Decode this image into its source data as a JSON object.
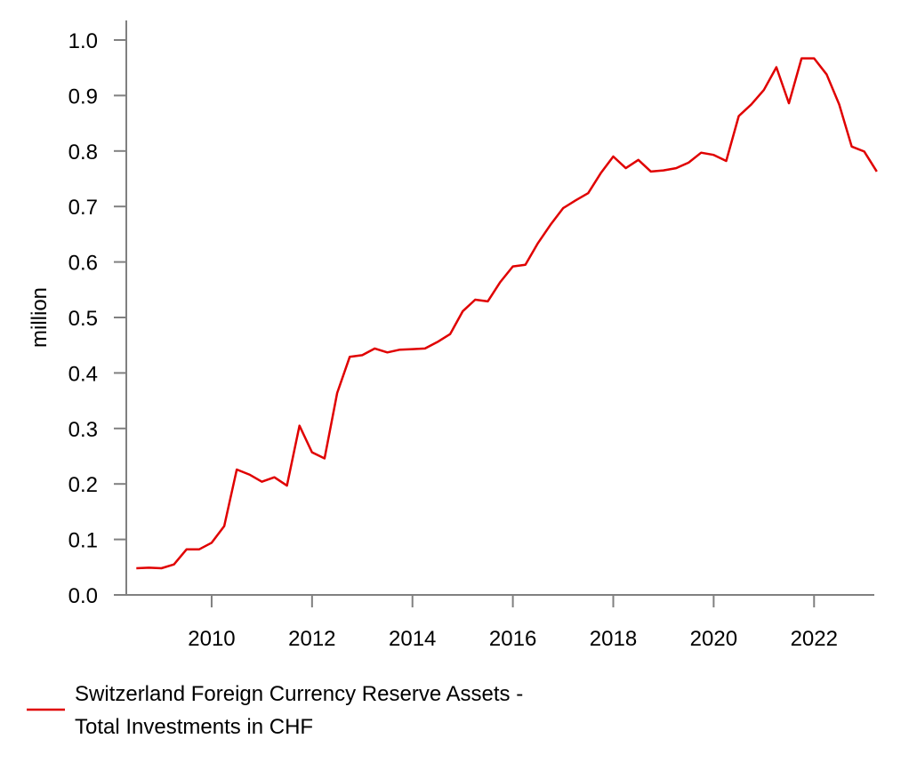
{
  "chart_data": {
    "type": "line",
    "ylabel": "million",
    "xlabel": "",
    "ylim": [
      0.0,
      1.0
    ],
    "xlim": [
      2008.3,
      2023.2
    ],
    "y_ticks": [
      0.0,
      0.1,
      0.2,
      0.3,
      0.4,
      0.5,
      0.6,
      0.7,
      0.8,
      0.9,
      1.0
    ],
    "y_tick_labels": [
      "0.0",
      "0.1",
      "0.2",
      "0.3",
      "0.4",
      "0.5",
      "0.6",
      "0.7",
      "0.8",
      "0.9",
      "1.0"
    ],
    "x_ticks": [
      2010,
      2012,
      2014,
      2016,
      2018,
      2020,
      2022
    ],
    "x_tick_labels": [
      "2010",
      "2012",
      "2014",
      "2016",
      "2018",
      "2020",
      "2022"
    ],
    "grid": false,
    "legend_position": "bottom-left",
    "series": [
      {
        "name": "Switzerland Foreign Currency Reserve Assets - Total Investments in CHF",
        "legend_lines": [
          "Switzerland Foreign Currency Reserve Assets -",
          "Total Investments in CHF"
        ],
        "color": "#e00000",
        "x": [
          2008.5,
          2008.75,
          2009.0,
          2009.25,
          2009.5,
          2009.75,
          2010.0,
          2010.25,
          2010.5,
          2010.75,
          2011.0,
          2011.25,
          2011.5,
          2011.75,
          2012.0,
          2012.25,
          2012.5,
          2012.75,
          2013.0,
          2013.25,
          2013.5,
          2013.75,
          2014.0,
          2014.25,
          2014.5,
          2014.75,
          2015.0,
          2015.25,
          2015.5,
          2015.75,
          2016.0,
          2016.25,
          2016.5,
          2016.75,
          2017.0,
          2017.25,
          2017.5,
          2017.75,
          2018.0,
          2018.25,
          2018.5,
          2018.75,
          2019.0,
          2019.25,
          2019.5,
          2019.75,
          2020.0,
          2020.25,
          2020.5,
          2020.75,
          2021.0,
          2021.25,
          2021.5,
          2021.75,
          2022.0,
          2022.25,
          2022.5,
          2022.75,
          2023.0,
          2023.25
        ],
        "values": [
          0.048,
          0.049,
          0.048,
          0.055,
          0.082,
          0.082,
          0.094,
          0.124,
          0.226,
          0.217,
          0.204,
          0.212,
          0.197,
          0.305,
          0.257,
          0.246,
          0.364,
          0.429,
          0.432,
          0.444,
          0.437,
          0.442,
          0.443,
          0.444,
          0.456,
          0.47,
          0.511,
          0.532,
          0.529,
          0.564,
          0.592,
          0.595,
          0.634,
          0.667,
          0.697,
          0.711,
          0.724,
          0.76,
          0.79,
          0.769,
          0.784,
          0.763,
          0.765,
          0.769,
          0.779,
          0.797,
          0.793,
          0.782,
          0.863,
          0.884,
          0.91,
          0.951,
          0.886,
          0.967,
          0.967,
          0.938,
          0.884,
          0.808,
          0.799,
          0.763
        ]
      }
    ]
  }
}
